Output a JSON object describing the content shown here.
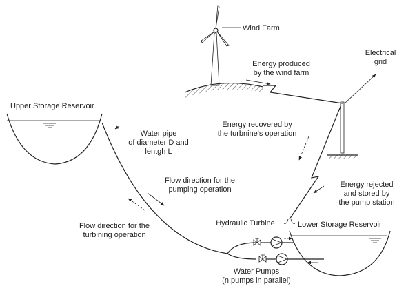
{
  "labels": [
    {
      "lines": [
        "Wind Farm"
      ]
    },
    {
      "lines": [
        "Energy produced",
        "by the wind farm"
      ]
    },
    {
      "lines": [
        "Electrical",
        "grid"
      ]
    },
    {
      "lines": [
        "Upper Storage Reservoir"
      ]
    },
    {
      "lines": [
        "Water pipe",
        "of diameter D and",
        "lentgh L"
      ]
    },
    {
      "lines": [
        "Energy recovered by",
        "the turbnine's operation"
      ]
    },
    {
      "lines": [
        "Flow direction for the",
        "pumping operation"
      ]
    },
    {
      "lines": [
        "Energy rejected",
        "and stored by",
        "the pump station"
      ]
    },
    {
      "lines": [
        "Flow direction for the",
        "turbining operation"
      ]
    },
    {
      "lines": [
        "Hydraulic Turbine"
      ]
    },
    {
      "lines": [
        "Lower Storage Reservoir"
      ]
    },
    {
      "lines": [
        "Water Pumps",
        "(n pumps in parallel)"
      ]
    }
  ]
}
